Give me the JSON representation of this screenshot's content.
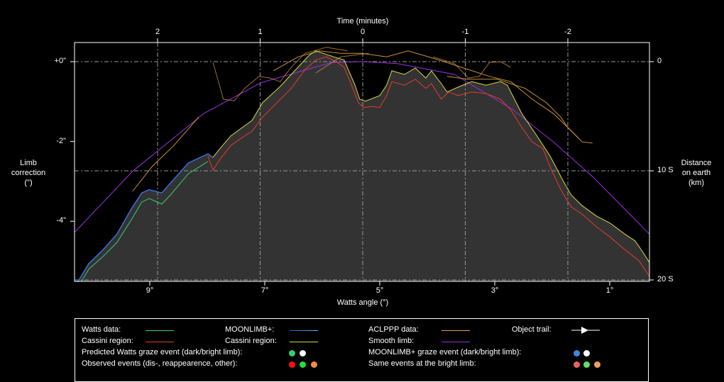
{
  "chart_data": {
    "type": "line",
    "title": "",
    "top_axis": {
      "label": "Time (minutes)",
      "ticks": [
        2,
        1,
        0,
        -1,
        -2
      ],
      "tick_labels": [
        "2",
        "1",
        "0",
        "-1",
        "-2"
      ]
    },
    "bottom_axis": {
      "label": "Watts angle (°)",
      "range": [
        10.31,
        0.31
      ],
      "ticks": [
        9,
        7,
        5,
        3,
        1
      ],
      "tick_labels": [
        "9°",
        "7°",
        "5°",
        "3°",
        "1°"
      ]
    },
    "left_axis": {
      "label_lines": [
        "Limb",
        "correction",
        "(\")"
      ],
      "range": [
        -5.5,
        0.48
      ],
      "ticks": [
        0,
        -2,
        -4
      ],
      "tick_labels": [
        "+0\"",
        "-2\"",
        "-4\""
      ]
    },
    "right_axis": {
      "label_lines": [
        "Distance",
        "on earth",
        "(km)"
      ],
      "ticks": [
        0,
        10,
        20
      ],
      "tick_labels": [
        "0",
        "10 S",
        "20 S"
      ],
      "range": [
        -1.7,
        20.2
      ]
    },
    "grid": true,
    "series": [
      {
        "name": "MOONLIMB+ profile (filled)",
        "color": "#3a6fd8",
        "fill": "#333333",
        "points": [
          [
            10.31,
            -5.6
          ],
          [
            10.25,
            -5.51
          ],
          [
            10.06,
            -5.06
          ],
          [
            9.81,
            -4.71
          ],
          [
            9.57,
            -4.32
          ],
          [
            9.32,
            -3.69
          ],
          [
            9.14,
            -3.29
          ],
          [
            9.01,
            -3.21
          ],
          [
            8.79,
            -3.29
          ],
          [
            8.64,
            -3.04
          ],
          [
            8.33,
            -2.54
          ],
          [
            7.99,
            -2.31
          ],
          [
            7.9,
            -2.4
          ]
        ]
      },
      {
        "name": "Cassini region (MOONLIMB+)",
        "color": "#d8d840",
        "points": [
          [
            7.9,
            -2.4
          ],
          [
            7.78,
            -2.18
          ],
          [
            7.59,
            -1.86
          ],
          [
            7.22,
            -1.47
          ],
          [
            7.04,
            -1.03
          ],
          [
            6.73,
            -0.62
          ],
          [
            6.48,
            -0.23
          ],
          [
            6.23,
            0.16
          ],
          [
            6.11,
            0.27
          ],
          [
            5.8,
            0.12
          ],
          [
            5.62,
            0.04
          ],
          [
            5.43,
            -0.59
          ],
          [
            5.35,
            -0.94
          ],
          [
            5.25,
            -0.99
          ],
          [
            5.0,
            -0.85
          ],
          [
            4.88,
            -0.59
          ],
          [
            4.79,
            -0.23
          ],
          [
            4.57,
            -0.32
          ],
          [
            4.38,
            -0.16
          ],
          [
            4.2,
            -0.41
          ],
          [
            4.1,
            -0.23
          ],
          [
            3.93,
            -0.55
          ],
          [
            3.83,
            -0.76
          ],
          [
            3.64,
            -0.64
          ],
          [
            3.4,
            -0.5
          ],
          [
            3.15,
            -0.59
          ],
          [
            2.9,
            -0.5
          ],
          [
            2.78,
            -0.59
          ],
          [
            2.53,
            -1.3
          ],
          [
            2.28,
            -1.83
          ],
          [
            2.04,
            -2.36
          ],
          [
            1.79,
            -3.04
          ],
          [
            1.67,
            -3.34
          ],
          [
            1.48,
            -3.61
          ],
          [
            1.23,
            -3.87
          ],
          [
            0.99,
            -4.05
          ],
          [
            0.74,
            -4.32
          ],
          [
            0.56,
            -4.49
          ],
          [
            0.43,
            -4.76
          ],
          [
            0.31,
            -5.03
          ]
        ]
      },
      {
        "name": "Watts data",
        "color": "#30d070",
        "points": [
          [
            10.19,
            -5.51
          ],
          [
            10.06,
            -5.2
          ],
          [
            9.81,
            -4.88
          ],
          [
            9.57,
            -4.53
          ],
          [
            9.32,
            -3.96
          ],
          [
            9.14,
            -3.52
          ],
          [
            9.01,
            -3.43
          ],
          [
            8.79,
            -3.57
          ],
          [
            8.64,
            -3.34
          ],
          [
            8.33,
            -2.81
          ],
          [
            7.99,
            -2.5
          ]
        ]
      },
      {
        "name": "Cassini region (Watts)",
        "color": "#e83a2a",
        "points": [
          [
            7.99,
            -2.36
          ],
          [
            7.9,
            -2.72
          ],
          [
            7.78,
            -2.45
          ],
          [
            7.59,
            -2.1
          ],
          [
            7.41,
            -1.92
          ],
          [
            7.22,
            -1.74
          ],
          [
            7.04,
            -1.39
          ],
          [
            6.79,
            -1.03
          ],
          [
            6.54,
            -0.67
          ],
          [
            6.3,
            -0.2
          ],
          [
            6.11,
            0.04
          ],
          [
            5.93,
            0.12
          ],
          [
            5.74,
            -0.02
          ],
          [
            5.62,
            -0.14
          ],
          [
            5.49,
            -0.59
          ],
          [
            5.37,
            -1.03
          ],
          [
            5.28,
            -1.15
          ],
          [
            5.12,
            -1.12
          ],
          [
            5.0,
            -1.15
          ],
          [
            4.88,
            -0.85
          ],
          [
            4.79,
            -0.5
          ],
          [
            4.57,
            -0.59
          ],
          [
            4.38,
            -0.44
          ],
          [
            4.2,
            -0.67
          ],
          [
            4.1,
            -0.55
          ],
          [
            3.93,
            -0.94
          ],
          [
            3.8,
            -0.76
          ],
          [
            3.64,
            -0.85
          ],
          [
            3.4,
            -0.76
          ],
          [
            3.15,
            -0.8
          ],
          [
            2.9,
            -0.94
          ],
          [
            2.72,
            -1.21
          ],
          [
            2.53,
            -1.65
          ],
          [
            2.35,
            -2.01
          ],
          [
            2.16,
            -2.18
          ],
          [
            2.04,
            -2.63
          ],
          [
            1.85,
            -3.21
          ],
          [
            1.67,
            -3.64
          ],
          [
            1.48,
            -3.82
          ],
          [
            1.23,
            -4.14
          ],
          [
            0.99,
            -4.4
          ],
          [
            0.74,
            -4.71
          ],
          [
            0.49,
            -4.99
          ],
          [
            0.31,
            -5.38
          ]
        ]
      },
      {
        "name": "Smooth limb",
        "color": "#9a30e0",
        "points": [
          [
            10.31,
            -4.28
          ],
          [
            9.3,
            -2.75
          ],
          [
            8.06,
            -1.3
          ],
          [
            7.07,
            -0.53
          ],
          [
            5.84,
            -0.02
          ],
          [
            5.3,
            0
          ],
          [
            4.69,
            -0.05
          ],
          [
            3.7,
            -0.32
          ],
          [
            2.7,
            -1.19
          ],
          [
            1.98,
            -2.01
          ],
          [
            1.3,
            -2.88
          ],
          [
            0.31,
            -4.32
          ]
        ]
      },
      {
        "name": "ACLPPP data",
        "color": "#e0a040",
        "traces": [
          [
            [
              9.3,
              -3.25
            ],
            [
              8.96,
              -2.63
            ],
            [
              8.58,
              -2.1
            ],
            [
              8.15,
              -1.39
            ]
          ],
          [
            [
              7.9,
              -0.02
            ],
            [
              7.72,
              -0.94
            ],
            [
              7.53,
              -0.98
            ],
            [
              7.35,
              -0.67
            ],
            [
              7.1,
              -0.37
            ],
            [
              6.91,
              -0.41
            ],
            [
              6.73,
              -0.5
            ],
            [
              6.54,
              -0.14
            ],
            [
              6.3,
              0.21
            ],
            [
              5.93,
              0.36
            ],
            [
              5.56,
              0.27
            ]
          ],
          [
            [
              6.85,
              -0.23
            ],
            [
              6.42,
              0.12
            ],
            [
              6.05,
              0.27
            ],
            [
              5.68,
              0.21
            ],
            [
              5.31,
              0.21
            ],
            [
              4.88,
              0.12
            ],
            [
              4.51,
              0.27
            ],
            [
              4.08,
              0.09
            ],
            [
              3.58,
              -0.14
            ],
            [
              3.09,
              -0.37
            ],
            [
              2.72,
              -0.5
            ],
            [
              2.35,
              -0.94
            ],
            [
              1.98,
              -1.3
            ],
            [
              1.73,
              -1.65
            ],
            [
              1.48,
              -2.01
            ],
            [
              1.3,
              -2.04
            ]
          ],
          [
            [
              4.07,
              0.12
            ],
            [
              3.7,
              -0.05
            ],
            [
              3.46,
              -0.41
            ],
            [
              3.27,
              -0.37
            ],
            [
              3.09,
              -0.02
            ],
            [
              2.9,
              0
            ],
            [
              2.72,
              -0.14
            ]
          ],
          [
            [
              3.83,
              -0.37
            ],
            [
              3.46,
              -0.44
            ],
            [
              2.96,
              -0.44
            ],
            [
              2.47,
              -0.67
            ],
            [
              2.1,
              -1.03
            ],
            [
              1.85,
              -1.39
            ],
            [
              1.73,
              -1.65
            ],
            [
              1.54,
              -1.92
            ]
          ],
          [
            [
              6.11,
              -0.28
            ],
            [
              5.68,
              0.12
            ],
            [
              5.19,
              0.21
            ]
          ]
        ]
      }
    ],
    "legend": {
      "placement": "bottom",
      "items": [
        {
          "label": "Watts data:",
          "color": "#30d070"
        },
        {
          "label": "MOONLIMB+:",
          "color": "#3a8ae0"
        },
        {
          "label": "ACLPPP data:",
          "color": "#e0a040"
        },
        {
          "label": "Object trail:"
        },
        {
          "label": "Cassini region:",
          "color": "#e83a2a"
        },
        {
          "label": "Cassini region:",
          "color": "#d8d840"
        },
        {
          "label": "Smooth limb:",
          "color": "#9a30e0"
        },
        {
          "label": "Predicted Watts graze event (dark/bright limb):",
          "dots": [
            "#30d070",
            "#ffffff"
          ]
        },
        {
          "label": "MOONLIMB+ graze event (dark/bright limb):",
          "dots": [
            "#3a8ae0",
            "#ffffff"
          ]
        },
        {
          "label": "Observed events (dis-, reappearence, other):",
          "dots": [
            "#ff1010",
            "#20e040",
            "#f09040"
          ]
        },
        {
          "label": "Same events at the bright limb:",
          "dots": [
            "#f06060",
            "#60e070",
            "#f0a060"
          ]
        }
      ]
    }
  }
}
